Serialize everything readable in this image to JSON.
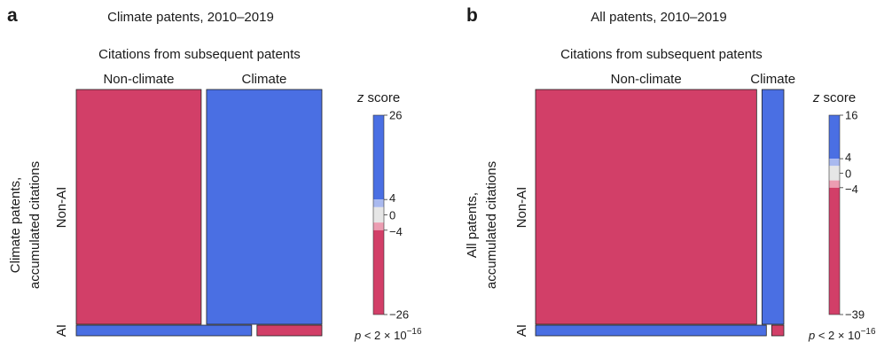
{
  "chart_data": [
    {
      "type": "mosaic",
      "panel_label": "a",
      "title": "Climate patents, 2010–2019",
      "column_axis_title": "Citations from subsequent patents",
      "columns": [
        "Non-climate",
        "Climate"
      ],
      "rows": [
        "Non-AI",
        "AI"
      ],
      "row_axis_title_line1": "Climate patents,",
      "row_axis_title_line2": "accumulated citations",
      "row_shares": [
        0.96,
        0.04
      ],
      "column_shares_within_row": {
        "Non-AI": [
          0.52,
          0.48
        ],
        "AI": [
          0.73,
          0.27
        ]
      },
      "cell_z_colors": {
        "Non-AI": [
          "#d23f68",
          "#4a6fe3"
        ],
        "AI": [
          "#4a6fe3",
          "#d23f68"
        ]
      },
      "colorbar": {
        "title_italic": "z",
        "title_rest": " score",
        "ticks": [
          "26",
          "4",
          "0",
          "−4",
          "−26"
        ],
        "tick_values": [
          26,
          4,
          0,
          -4,
          -26
        ],
        "range": [
          -26,
          26
        ]
      },
      "pvalue": {
        "italic": "p",
        "text": " < 2 × 10",
        "exponent": "−16"
      }
    },
    {
      "type": "mosaic",
      "panel_label": "b",
      "title": "All patents, 2010–2019",
      "column_axis_title": "Citations from subsequent patents",
      "columns": [
        "Non-climate",
        "Climate"
      ],
      "rows": [
        "Non-AI",
        "AI"
      ],
      "row_axis_title_line1": "All patents,",
      "row_axis_title_line2": "accumulated citations",
      "row_shares": [
        0.96,
        0.04
      ],
      "column_shares_within_row": {
        "Non-AI": [
          0.91,
          0.09
        ],
        "AI": [
          0.95,
          0.05
        ]
      },
      "cell_z_colors": {
        "Non-AI": [
          "#d23f68",
          "#4a6fe3"
        ],
        "AI": [
          "#4a6fe3",
          "#d23f68"
        ]
      },
      "colorbar": {
        "title_italic": "z",
        "title_rest": " score",
        "ticks": [
          "16",
          "4",
          "0",
          "−4",
          "−39"
        ],
        "tick_values": [
          16,
          4,
          0,
          -4,
          -39
        ],
        "range": [
          -39,
          16
        ]
      },
      "pvalue": {
        "italic": "p",
        "text": " < 2 × 10",
        "exponent": "−16"
      }
    }
  ],
  "colors": {
    "pos_strong": "#4a6fe3",
    "pos_light": "#a9b9ef",
    "neutral": "#e6e6e6",
    "neg_light": "#ec9db2",
    "neg_strong": "#d23f68"
  }
}
